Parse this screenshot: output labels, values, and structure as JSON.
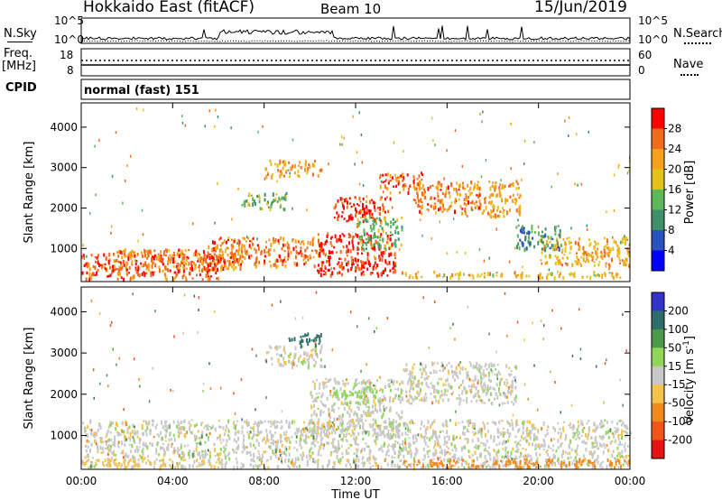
{
  "header": {
    "station": "Hokkaido East (fitACF)",
    "beam": "Beam 10",
    "date": "15/Jun/2019"
  },
  "top_panels": {
    "nsky_label": "N.Sky",
    "nsky_ticks": [
      "10^5",
      "10^0"
    ],
    "nsearch_label": "N.Search",
    "freq_label": "Freq.",
    "freq_unit": "[MHz]",
    "freq_ticks": [
      "18",
      "8"
    ],
    "nave_ticks": [
      "60",
      "0"
    ],
    "nave_label": "Nave",
    "cpid_label": "CPID",
    "cpid_value": "normal (fast) 151"
  },
  "colors": {
    "power_scale": [
      "#0000ff",
      "#2a52be",
      "#3f8f6a",
      "#5cb85c",
      "#e3c21a",
      "#f7a21b",
      "#f26b1d",
      "#ff0000"
    ],
    "velocity_scale": [
      "#3333cc",
      "#2f6e68",
      "#4a9a4a",
      "#8fd65a",
      "#c8c8c8",
      "#f5c24a",
      "#f08a1c",
      "#f2541b",
      "#e51414"
    ],
    "ground_scatter": "#c8c8c8"
  },
  "chart_data": [
    {
      "type": "heatmap",
      "name_panel": "power",
      "ylabel": "Slant Range [km]",
      "y_ticks": [
        "1000",
        "2000",
        "3000",
        "4000"
      ],
      "ylim": [
        180,
        4600
      ],
      "xlim": [
        0,
        24
      ],
      "colorbar_label": "Power [dB]",
      "colorbar_ticks": [
        "4",
        "8",
        "12",
        "16",
        "20",
        "24",
        "28"
      ],
      "clim": [
        0,
        32
      ],
      "regions": [
        {
          "t0": 0.0,
          "t1": 6.0,
          "r0": 250,
          "r1": 900,
          "value": 27
        },
        {
          "t0": 1.5,
          "t1": 7.0,
          "r0": 500,
          "r1": 1000,
          "value": 24
        },
        {
          "t0": 5.5,
          "t1": 10.5,
          "r0": 600,
          "r1": 1300,
          "value": 25
        },
        {
          "t0": 10.3,
          "t1": 13.7,
          "r0": 350,
          "r1": 1400,
          "value": 29
        },
        {
          "t0": 11.0,
          "t1": 13.5,
          "r0": 1700,
          "r1": 2300,
          "value": 28
        },
        {
          "t0": 13.0,
          "t1": 15.0,
          "r0": 2400,
          "r1": 2900,
          "value": 26
        },
        {
          "t0": 14.5,
          "t1": 17.5,
          "r0": 1900,
          "r1": 2700,
          "value": 24
        },
        {
          "t0": 17.5,
          "t1": 19.2,
          "r0": 1800,
          "r1": 2700,
          "value": 22
        },
        {
          "t0": 20.0,
          "t1": 24.0,
          "r0": 600,
          "r1": 1300,
          "value": 21
        },
        {
          "t0": 8.0,
          "t1": 10.5,
          "r0": 2800,
          "r1": 3200,
          "value": 22
        },
        {
          "t0": 12.0,
          "t1": 14.0,
          "r0": 1000,
          "r1": 1800,
          "value": 13
        },
        {
          "t0": 14.0,
          "t1": 24.0,
          "r0": 300,
          "r1": 450,
          "value": 20
        },
        {
          "t0": 19.0,
          "t1": 21.0,
          "r0": 1000,
          "r1": 1600,
          "value": 11
        },
        {
          "t0": 7.0,
          "t1": 9.0,
          "r0": 2000,
          "r1": 2400,
          "value": 14
        }
      ]
    },
    {
      "type": "heatmap",
      "name_panel": "velocity",
      "ylabel": "Slant Range [km]",
      "xlabel": "Time UT",
      "x_ticks": [
        "00:00",
        "04:00",
        "08:00",
        "12:00",
        "16:00",
        "20:00",
        "00:00"
      ],
      "y_ticks": [
        "1000",
        "2000",
        "3000",
        "4000"
      ],
      "ylim": [
        180,
        4600
      ],
      "xlim": [
        0,
        24
      ],
      "colorbar_label": "Velocity [m s",
      "colorbar_unit_exp": "-1",
      "colorbar_unit_end": "]",
      "colorbar_ticks": [
        "200",
        "100",
        "50",
        "15",
        "-15",
        "-50",
        "-100",
        "-200"
      ],
      "clim": [
        -250,
        250
      ],
      "regions": [
        {
          "t0": 0.0,
          "t1": 24.0,
          "r0": 250,
          "r1": 1400,
          "value": 0
        },
        {
          "t0": 10.0,
          "t1": 14.0,
          "r0": 1000,
          "r1": 2400,
          "value": 0
        },
        {
          "t0": 14.0,
          "t1": 19.0,
          "r0": 1800,
          "r1": 2800,
          "value": 0
        },
        {
          "t0": 8.0,
          "t1": 10.5,
          "r0": 2700,
          "r1": 3200,
          "value": 0
        },
        {
          "t0": 11.0,
          "t1": 13.0,
          "r0": 1800,
          "r1": 2200,
          "value": 30
        },
        {
          "t0": 14.0,
          "t1": 24.0,
          "r0": 250,
          "r1": 450,
          "value": -80
        },
        {
          "t0": 0.0,
          "t1": 6.0,
          "r0": 250,
          "r1": 450,
          "value": -30
        },
        {
          "t0": 9.0,
          "t1": 10.5,
          "r0": 3200,
          "r1": 3500,
          "value": 120
        }
      ]
    }
  ]
}
